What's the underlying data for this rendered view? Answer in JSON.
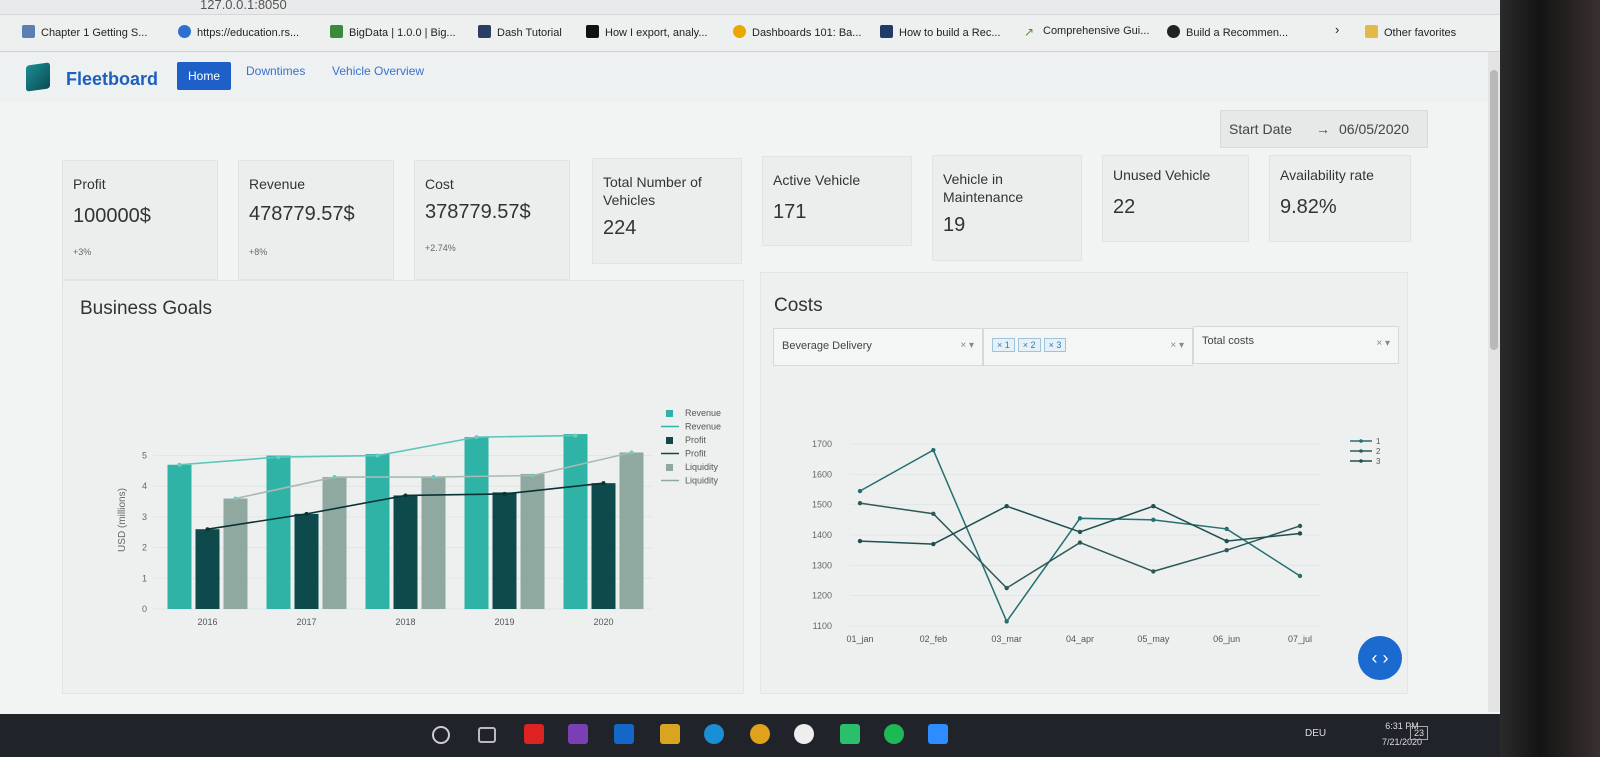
{
  "browser": {
    "url": "127.0.0.1:8050",
    "bookmarks": [
      {
        "label": "Chapter 1 Getting S...",
        "color": "#5b7fb0"
      },
      {
        "label": "https://education.rs...",
        "color": "#2f6fd0"
      },
      {
        "label": "BigData | 1.0.0 | Big...",
        "color": "#3a8a3a"
      },
      {
        "label": "Dash Tutorial",
        "color": "#2b3d66"
      },
      {
        "label": "How I export, analy...",
        "color": "#111111"
      },
      {
        "label": "Dashboards 101: Ba...",
        "color": "#e8a800"
      },
      {
        "label": "How to build a Rec...",
        "color": "#1f3b66"
      },
      {
        "label": "Comprehensive Gui...",
        "color": "#4b8f3a"
      },
      {
        "label": "Build a Recommen...",
        "color": "#222222"
      }
    ],
    "other_favorites": "Other favorites"
  },
  "app": {
    "brand": "Fleetboard",
    "nav": [
      "Home",
      "Downtimes",
      "Vehicle Overview"
    ]
  },
  "date": {
    "start_label": "Start Date",
    "arrow": "→",
    "end": "06/05/2020"
  },
  "kpis": [
    {
      "title": "Profit",
      "value": "100000$",
      "delta": "+3%"
    },
    {
      "title": "Revenue",
      "value": "478779.57$",
      "delta": "+8%"
    },
    {
      "title": "Cost",
      "value": "378779.57$",
      "delta": "+2.74%"
    },
    {
      "title": "Total Number of Vehicles",
      "value": "224",
      "delta": ""
    },
    {
      "title": "Active Vehicle",
      "value": "171",
      "delta": ""
    },
    {
      "title": "Vehicle in Maintenance",
      "value": "19",
      "delta": ""
    },
    {
      "title": "Unused Vehicle",
      "value": "22",
      "delta": ""
    },
    {
      "title": "Availability rate",
      "value": "9.82%",
      "delta": ""
    }
  ],
  "business_goals": {
    "title": "Business Goals"
  },
  "costs": {
    "title": "Costs",
    "dropdown_type": "Beverage Delivery",
    "dropdown_ids": [
      "1",
      "2",
      "3"
    ],
    "dropdown_metric": "Total costs"
  },
  "taskbar": {
    "time": "6:31 PM",
    "date": "7/21/2020",
    "lang": "DEU",
    "notif": "23"
  },
  "colors": {
    "revenue": "#2fb3a6",
    "profit": "#0e4a4c",
    "liquidity": "#8fa8a0"
  },
  "chart_data": [
    {
      "type": "bar",
      "categories": [
        "2016",
        "2017",
        "2018",
        "2019",
        "2020"
      ],
      "series": [
        {
          "name": "Revenue",
          "kind": "bar",
          "values": [
            4.7,
            5.0,
            5.05,
            5.6,
            5.7
          ]
        },
        {
          "name": "Revenue",
          "kind": "line",
          "values": [
            4.7,
            4.95,
            5.0,
            5.6,
            5.65
          ]
        },
        {
          "name": "Profit",
          "kind": "bar",
          "values": [
            2.6,
            3.1,
            3.7,
            3.8,
            4.1
          ]
        },
        {
          "name": "Profit",
          "kind": "line",
          "values": [
            2.6,
            3.1,
            3.7,
            3.75,
            4.1
          ]
        },
        {
          "name": "Liquidity",
          "kind": "bar",
          "values": [
            3.6,
            4.3,
            4.3,
            4.4,
            5.1
          ]
        },
        {
          "name": "Liquidity",
          "kind": "line",
          "values": [
            3.6,
            4.3,
            4.3,
            4.35,
            5.1
          ]
        }
      ],
      "ylabel": "USD (millions)",
      "yticks": [
        "0",
        "1",
        "2",
        "3",
        "4",
        "5"
      ],
      "ylim": [
        0,
        5.8
      ],
      "legend": "top-right"
    },
    {
      "type": "line",
      "x": [
        "01_jan",
        "02_feb",
        "03_mar",
        "04_apr",
        "05_may",
        "06_jun",
        "07_jul"
      ],
      "series": [
        {
          "name": "1",
          "values": [
            1545,
            1680,
            1115,
            1455,
            1450,
            1420,
            1265
          ]
        },
        {
          "name": "2",
          "values": [
            1505,
            1470,
            1225,
            1375,
            1280,
            1350,
            1430
          ]
        },
        {
          "name": "3",
          "values": [
            1380,
            1370,
            1495,
            1410,
            1495,
            1380,
            1405
          ]
        }
      ],
      "yticks": [
        "1100",
        "1200",
        "1300",
        "1400",
        "1500",
        "1600",
        "1700"
      ],
      "ylim": [
        1100,
        1700
      ],
      "legend": "top-right"
    }
  ]
}
